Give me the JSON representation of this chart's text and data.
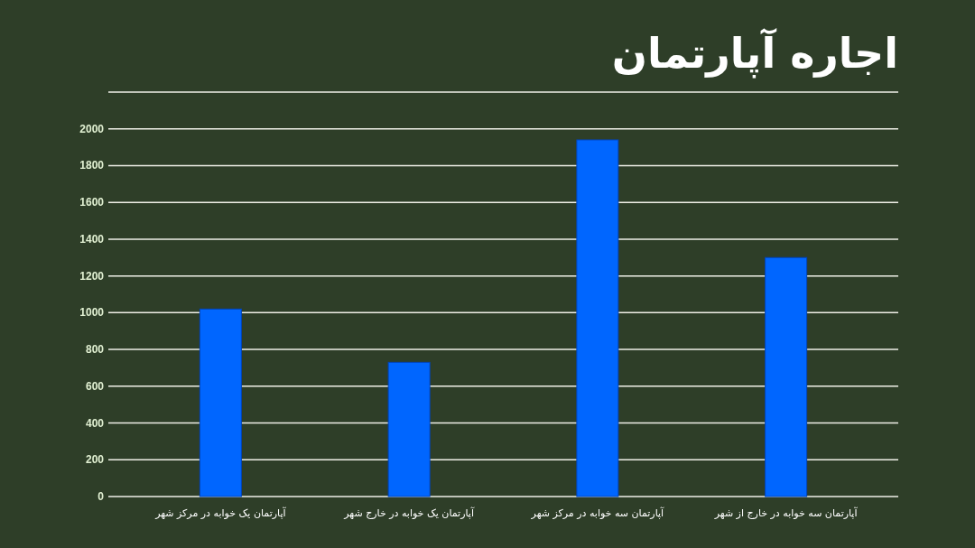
{
  "chart_data": {
    "type": "bar",
    "title": "اجاره آپارتمان",
    "categories": [
      "آپارتمان یک خوابه در مرکز شهر",
      "آپارتمان یک خوابه در خارج شهر",
      "آپارتمان سه خوابه در مرکز شهر",
      "آپارتمان سه خوابه در  خارج از شهر"
    ],
    "values": [
      1020,
      730,
      1940,
      1300
    ],
    "color": "#0066ff",
    "ylim": [
      0,
      2200
    ],
    "yticks": [
      0,
      200,
      400,
      600,
      800,
      1000,
      1200,
      1400,
      1600,
      1800,
      2000,
      {
        "value": 2200,
        "label": null
      }
    ],
    "grid": "y"
  }
}
